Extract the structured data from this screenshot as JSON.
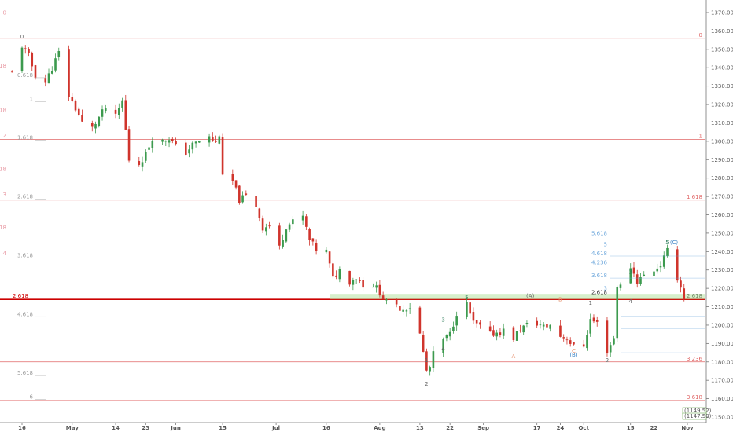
{
  "chart_data": {
    "type": "candlestick",
    "title": "",
    "xlabel": "",
    "ylabel": "",
    "ylim": [
      1150,
      1375
    ],
    "y_ticks": [
      1150,
      1160,
      1170,
      1180,
      1190,
      1200,
      1210,
      1220,
      1230,
      1240,
      1250,
      1260,
      1270,
      1280,
      1290,
      1300,
      1310,
      1320,
      1330,
      1340,
      1350,
      1360,
      1370
    ],
    "y_tick_labels": [
      "1150.00",
      "1160.00",
      "1170.00",
      "1180.00",
      "1190.00",
      "1200.00",
      "1210.00",
      "1220.00",
      "1230.00",
      "1240.00",
      "1250.00",
      "1260.00",
      "1270.00",
      "1280.00",
      "1290.00",
      "1300.00",
      "1310.00",
      "1320.00",
      "1330.00",
      "1340.00",
      "1350.00",
      "1360.00",
      "1370.00"
    ],
    "x_range": [
      "2018-04-14",
      "2018-11-03"
    ],
    "x_ticks": [
      {
        "label": "16",
        "date": "2018-04-16"
      },
      {
        "label": "May",
        "date": "2018-05-01"
      },
      {
        "label": "14",
        "date": "2018-05-14"
      },
      {
        "label": "23",
        "date": "2018-05-23"
      },
      {
        "label": "Jun",
        "date": "2018-06-01"
      },
      {
        "label": "15",
        "date": "2018-06-15"
      },
      {
        "label": "Jul",
        "date": "2018-07-01"
      },
      {
        "label": "16",
        "date": "2018-07-16"
      },
      {
        "label": "Aug",
        "date": "2018-08-01"
      },
      {
        "label": "13",
        "date": "2018-08-13"
      },
      {
        "label": "22",
        "date": "2018-08-22"
      },
      {
        "label": "Sep",
        "date": "2018-09-01"
      },
      {
        "label": "17",
        "date": "2018-09-17"
      },
      {
        "label": "24",
        "date": "2018-09-24"
      },
      {
        "label": "Oct",
        "date": "2018-10-01"
      },
      {
        "label": "15",
        "date": "2018-10-15"
      },
      {
        "label": "22",
        "date": "2018-10-22"
      },
      {
        "label": "Nov",
        "date": "2018-11-01"
      }
    ],
    "close_series": [
      [
        "2018-04-13",
        1337
      ],
      [
        "2018-04-16",
        1352
      ],
      [
        "2018-04-18",
        1346
      ],
      [
        "2018-04-20",
        1336
      ],
      [
        "2018-04-23",
        1332
      ],
      [
        "2018-04-25",
        1340
      ],
      [
        "2018-04-27",
        1348
      ],
      [
        "2018-04-30",
        1325
      ],
      [
        "2018-05-02",
        1318
      ],
      [
        "2018-05-04",
        1310
      ],
      [
        "2018-05-07",
        1307
      ],
      [
        "2018-05-09",
        1313
      ],
      [
        "2018-05-11",
        1318
      ],
      [
        "2018-05-14",
        1313
      ],
      [
        "2018-05-16",
        1322
      ],
      [
        "2018-05-18",
        1290
      ],
      [
        "2018-05-21",
        1288
      ],
      [
        "2018-05-23",
        1293
      ],
      [
        "2018-05-25",
        1302
      ],
      [
        "2018-05-28",
        1300
      ],
      [
        "2018-05-30",
        1302
      ],
      [
        "2018-06-01",
        1297
      ],
      [
        "2018-06-04",
        1294
      ],
      [
        "2018-06-06",
        1298
      ],
      [
        "2018-06-08",
        1300
      ],
      [
        "2018-06-11",
        1302
      ],
      [
        "2018-06-13",
        1299
      ],
      [
        "2018-06-14",
        1304
      ],
      [
        "2018-06-15",
        1280
      ],
      [
        "2018-06-18",
        1278
      ],
      [
        "2018-06-20",
        1268
      ],
      [
        "2018-06-22",
        1270
      ],
      [
        "2018-06-25",
        1265
      ],
      [
        "2018-06-27",
        1253
      ],
      [
        "2018-06-29",
        1254
      ],
      [
        "2018-07-02",
        1242
      ],
      [
        "2018-07-04",
        1254
      ],
      [
        "2018-07-06",
        1256
      ],
      [
        "2018-07-09",
        1259
      ],
      [
        "2018-07-11",
        1246
      ],
      [
        "2018-07-13",
        1241
      ],
      [
        "2018-07-16",
        1240
      ],
      [
        "2018-07-18",
        1225
      ],
      [
        "2018-07-20",
        1230
      ],
      [
        "2018-07-23",
        1224
      ],
      [
        "2018-07-25",
        1226
      ],
      [
        "2018-07-27",
        1222
      ],
      [
        "2018-07-30",
        1222
      ],
      [
        "2018-08-01",
        1218
      ],
      [
        "2018-08-03",
        1212
      ],
      [
        "2018-08-06",
        1210
      ],
      [
        "2018-08-08",
        1209
      ],
      [
        "2018-08-10",
        1210
      ],
      [
        "2018-08-13",
        1195
      ],
      [
        "2018-08-15",
        1175
      ],
      [
        "2018-08-16",
        1177
      ],
      [
        "2018-08-17",
        1184
      ],
      [
        "2018-08-20",
        1192
      ],
      [
        "2018-08-22",
        1195
      ],
      [
        "2018-08-24",
        1207
      ],
      [
        "2018-08-27",
        1211
      ],
      [
        "2018-08-29",
        1201
      ],
      [
        "2018-08-31",
        1199
      ],
      [
        "2018-09-03",
        1195
      ],
      [
        "2018-09-05",
        1196
      ],
      [
        "2018-09-07",
        1197
      ],
      [
        "2018-09-10",
        1193
      ],
      [
        "2018-09-12",
        1198
      ],
      [
        "2018-09-14",
        1200
      ],
      [
        "2018-09-17",
        1201
      ],
      [
        "2018-09-19",
        1199
      ],
      [
        "2018-09-21",
        1200
      ],
      [
        "2018-09-24",
        1194
      ],
      [
        "2018-09-26",
        1193
      ],
      [
        "2018-09-28",
        1188
      ],
      [
        "2018-10-01",
        1189
      ],
      [
        "2018-10-03",
        1203
      ],
      [
        "2018-10-05",
        1201
      ],
      [
        "2018-10-08",
        1186
      ],
      [
        "2018-10-10",
        1193
      ],
      [
        "2018-10-11",
        1222
      ],
      [
        "2018-10-12",
        1221
      ],
      [
        "2018-10-15",
        1232
      ],
      [
        "2018-10-17",
        1224
      ],
      [
        "2018-10-19",
        1227
      ],
      [
        "2018-10-22",
        1230
      ],
      [
        "2018-10-24",
        1233
      ],
      [
        "2018-10-26",
        1240
      ],
      [
        "2018-10-29",
        1226
      ],
      [
        "2018-10-31",
        1215
      ]
    ],
    "horizontal_levels": [
      {
        "value": 1356,
        "label": "0",
        "label_side": "right",
        "color": "#e06666"
      },
      {
        "value": 1301,
        "label": "1",
        "label_side": "right",
        "color": "#e06666"
      },
      {
        "value": 1268,
        "label": "1.618",
        "label_side": "right",
        "color": "#e06666"
      },
      {
        "value": 1214,
        "label": "2.618",
        "label_side": "both",
        "color": "#cc0000",
        "bold": true
      },
      {
        "value": 1180,
        "label": "3.236",
        "label_side": "right",
        "color": "#e06666"
      },
      {
        "value": 1159,
        "label": "3.618",
        "label_side": "right",
        "color": "#e06666"
      }
    ],
    "left_fib_labels": [
      {
        "value": 1335,
        "label": "0.618"
      },
      {
        "value": 1322,
        "label": "1"
      },
      {
        "value": 1301,
        "label": "1.618"
      },
      {
        "value": 1269,
        "label": "2.618"
      },
      {
        "value": 1237,
        "label": "3.618"
      },
      {
        "value": 1205,
        "label": "4.618"
      },
      {
        "value": 1173,
        "label": "5.618"
      },
      {
        "value": 1160,
        "label": "6"
      }
    ],
    "left_edge_marks": [
      {
        "value": 1369,
        "label": "0"
      },
      {
        "value": 1340,
        "label": ".618"
      },
      {
        "value": 1316,
        "label": "18"
      },
      {
        "value": 1302,
        "label": "2"
      },
      {
        "value": 1284,
        "label": "18"
      },
      {
        "value": 1270,
        "label": "3"
      },
      {
        "value": 1252,
        "label": "18"
      },
      {
        "value": 1238,
        "label": "4"
      }
    ],
    "right_fib_labels": [
      {
        "value": 1249,
        "label": "5.618"
      },
      {
        "value": 1243,
        "label": "5"
      },
      {
        "value": 1238,
        "label": "4.618"
      },
      {
        "value": 1233,
        "label": "4.236"
      },
      {
        "value": 1226,
        "label": "3.618"
      },
      {
        "value": 1219,
        "label": "3"
      }
    ],
    "green_zone": {
      "from": 1214,
      "to": 1217,
      "label": "2.618"
    },
    "price_tags": [
      "1149.52",
      "1147.50"
    ],
    "wave_labels": [
      {
        "date": "2018-04-16",
        "value": 1356,
        "label": "0"
      },
      {
        "date": "2018-08-15",
        "value": 1167,
        "label": "2"
      },
      {
        "date": "2018-08-15",
        "value": 1180,
        "label": "1"
      },
      {
        "date": "2018-08-20",
        "value": 1186,
        "label": "4"
      },
      {
        "date": "2018-08-20",
        "value": 1202,
        "label": "3"
      },
      {
        "date": "2018-08-27",
        "value": 1214,
        "label": "5"
      },
      {
        "date": "2018-09-10",
        "value": 1182,
        "label": "A"
      },
      {
        "date": "2018-09-15",
        "value": 1215,
        "label": "(A)"
      },
      {
        "date": "2018-09-24",
        "value": 1213,
        "label": "B"
      },
      {
        "date": "2018-09-28",
        "value": 1185,
        "label": "C"
      },
      {
        "date": "2018-09-28",
        "value": 1183,
        "label": "(B)"
      },
      {
        "date": "2018-10-03",
        "value": 1211,
        "label": "1"
      },
      {
        "date": "2018-10-08",
        "value": 1180,
        "label": "2"
      },
      {
        "date": "2018-10-15",
        "value": 1228,
        "label": "3"
      },
      {
        "date": "2018-10-15",
        "value": 1212,
        "label": "4"
      },
      {
        "date": "2018-10-26",
        "value": 1244,
        "label": "5"
      },
      {
        "date": "2018-10-28",
        "value": 1244,
        "label": "(C)"
      }
    ]
  }
}
